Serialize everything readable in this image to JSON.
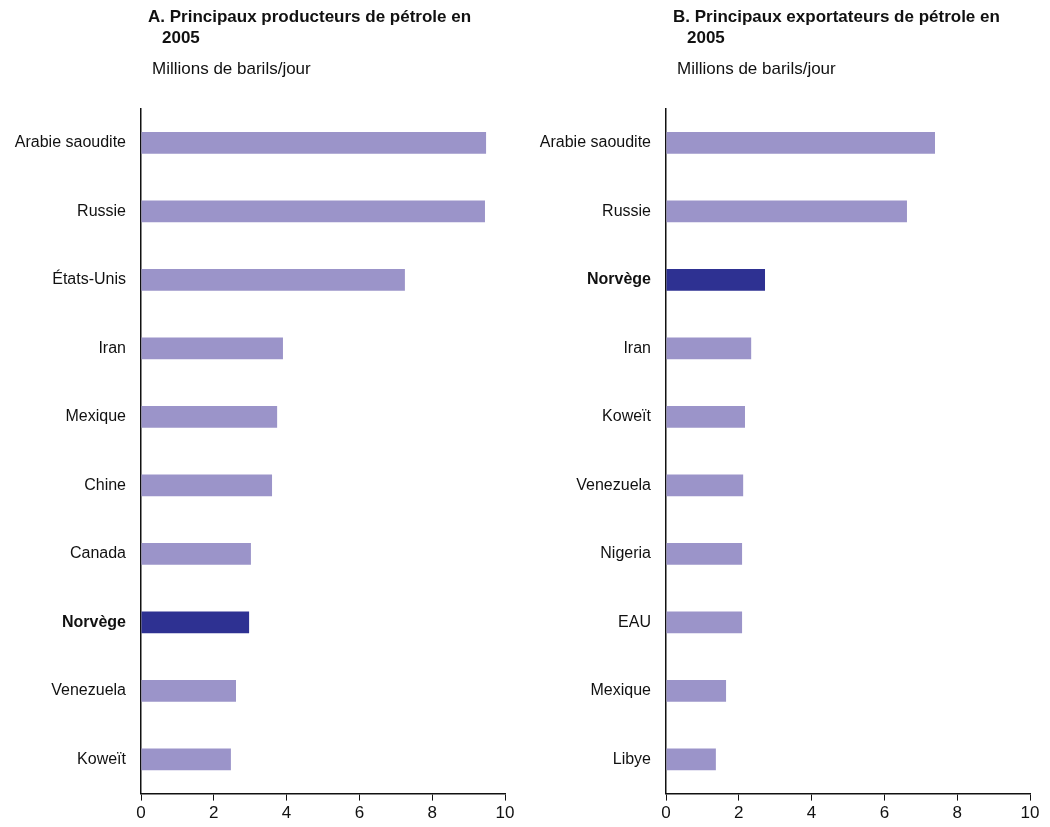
{
  "chart_data": [
    {
      "type": "bar",
      "orientation": "horizontal",
      "title": "A. Principaux producteurs de pétrole en 2005",
      "subtitle": "Millions de barils/jour",
      "categories": [
        "Arabie saoudite",
        "Russie",
        "États-Unis",
        "Iran",
        "Mexique",
        "Chine",
        "Canada",
        "Norvège",
        "Venezuela",
        "Koweït"
      ],
      "values": [
        9.48,
        9.45,
        7.25,
        3.9,
        3.74,
        3.6,
        3.02,
        2.97,
        2.61,
        2.47
      ],
      "colors": [
        "#9b94c9",
        "#9b94c9",
        "#9b94c9",
        "#9b94c9",
        "#9b94c9",
        "#9b94c9",
        "#9b94c9",
        "#2e3192",
        "#9b94c9",
        "#9b94c9"
      ],
      "xlim": [
        0,
        10
      ],
      "xticks": [
        0,
        2,
        4,
        6,
        8,
        10
      ],
      "grid": false,
      "legend": false
    },
    {
      "type": "bar",
      "orientation": "horizontal",
      "title": "B. Principaux exportateurs de pétrole en 2005",
      "subtitle": "Millions de barils/jour",
      "categories": [
        "Arabie saoudite",
        "Russie",
        "Norvège",
        "Iran",
        "Koweït",
        "Venezuela",
        "Nigeria",
        "EAU",
        "Mexique",
        "Libye"
      ],
      "values": [
        7.39,
        6.62,
        2.72,
        2.34,
        2.17,
        2.12,
        2.09,
        2.09,
        1.65,
        1.37
      ],
      "colors": [
        "#9b94c9",
        "#9b94c9",
        "#2e3192",
        "#9b94c9",
        "#9b94c9",
        "#9b94c9",
        "#9b94c9",
        "#9b94c9",
        "#9b94c9",
        "#9b94c9"
      ],
      "xlim": [
        0,
        10
      ],
      "xticks": [
        0,
        2,
        4,
        6,
        8,
        10
      ],
      "grid": false,
      "legend": false
    }
  ]
}
